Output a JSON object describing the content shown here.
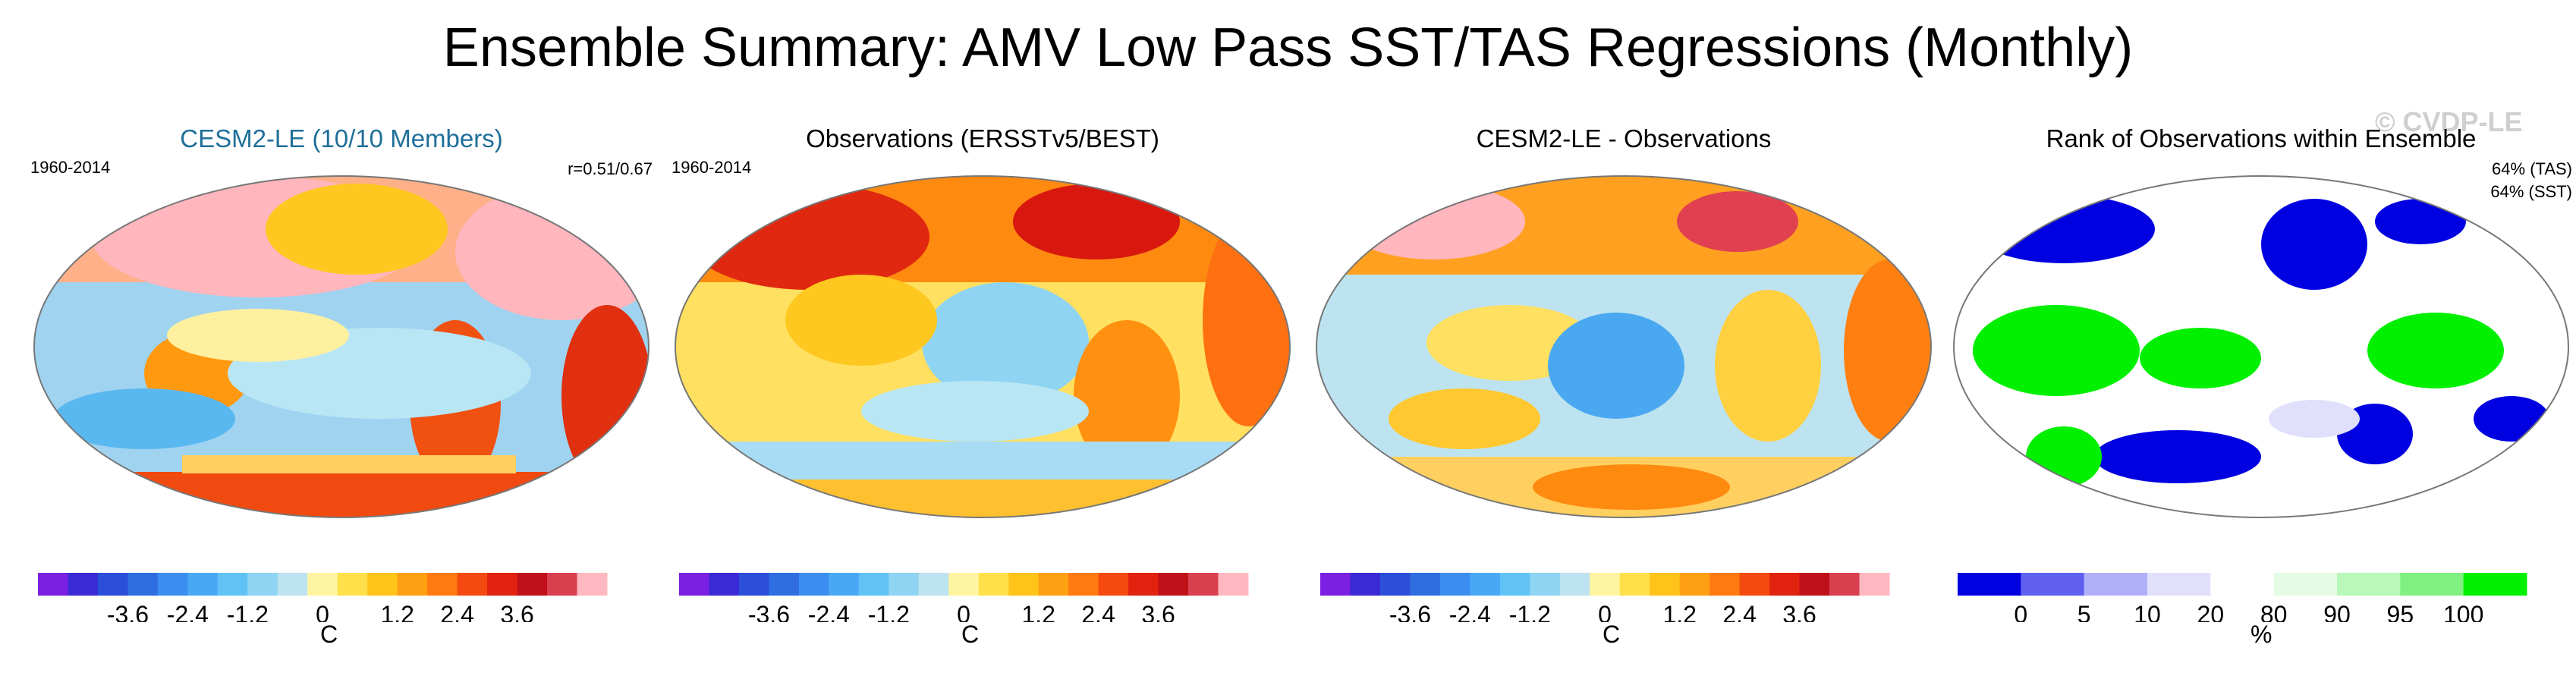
{
  "title": "Ensemble Summary: AMV Low Pass SST/TAS Regressions (Monthly)",
  "watermark": "© CVDP-LE",
  "colors": {
    "diverging": [
      "#7b1fe0",
      "#3a2ad6",
      "#2b4fd8",
      "#2f6ee0",
      "#3b8ef0",
      "#49a8f5",
      "#61c3f5",
      "#8fd4f2",
      "#bde3f0",
      "#fff5a0",
      "#ffe04a",
      "#ffc31a",
      "#ffa013",
      "#ff7a10",
      "#f54a0f",
      "#e0220f",
      "#c0101a",
      "#d84050",
      "#ffb8c0"
    ],
    "rank": [
      "#0000e0",
      "#6060f0",
      "#b0b0f8",
      "#e0e0fc",
      "#ffffff",
      "#e4fce4",
      "#b8f8b8",
      "#80f080",
      "#00f000"
    ]
  },
  "panels": [
    {
      "title": "CESM2-LE (10/10 Members)",
      "period": "1960-2014",
      "corr": "r=0.51/0.67",
      "units": "C",
      "ticks": [
        "-3.6",
        "-2.4",
        "-1.2",
        "0",
        "1.2",
        "2.4",
        "3.6"
      ]
    },
    {
      "title": "Observations (ERSSTv5/BEST)",
      "period": "1960-2014",
      "units": "C",
      "ticks": [
        "-3.6",
        "-2.4",
        "-1.2",
        "0",
        "1.2",
        "2.4",
        "3.6"
      ]
    },
    {
      "title": "CESM2-LE - Observations",
      "units": "C",
      "ticks": [
        "-3.6",
        "-2.4",
        "-1.2",
        "0",
        "1.2",
        "2.4",
        "3.6"
      ]
    },
    {
      "title": "Rank of Observations within Ensemble",
      "tas": "64% (TAS)",
      "sst": "64% (SST)",
      "units": "%",
      "ticks": [
        "0",
        "5",
        "10",
        "20",
        "80",
        "90",
        "95",
        "100"
      ]
    }
  ],
  "chart_data": [
    {
      "type": "heatmap",
      "title": "CESM2-LE (10/10 Members)",
      "period": "1960-2014",
      "annotation": "r=0.51/0.67",
      "colorbar_units": "C",
      "colorbar_ticks": [
        -3.6,
        -2.4,
        -1.2,
        0,
        1.2,
        2.4,
        3.6
      ],
      "levels": 19
    },
    {
      "type": "heatmap",
      "title": "Observations (ERSSTv5/BEST)",
      "period": "1960-2014",
      "colorbar_units": "C",
      "colorbar_ticks": [
        -3.6,
        -2.4,
        -1.2,
        0,
        1.2,
        2.4,
        3.6
      ],
      "levels": 19
    },
    {
      "type": "heatmap",
      "title": "CESM2-LE - Observations",
      "colorbar_units": "C",
      "colorbar_ticks": [
        -3.6,
        -2.4,
        -1.2,
        0,
        1.2,
        2.4,
        3.6
      ],
      "levels": 19
    },
    {
      "type": "heatmap",
      "title": "Rank of Observations within Ensemble",
      "annotations": [
        "64% (TAS)",
        "64% (SST)"
      ],
      "colorbar_units": "%",
      "colorbar_ticks": [
        0,
        5,
        10,
        20,
        80,
        90,
        95,
        100
      ]
    }
  ]
}
